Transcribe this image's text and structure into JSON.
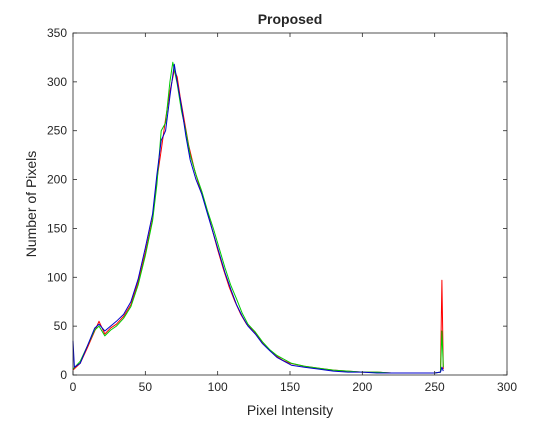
{
  "chart_data": {
    "type": "line",
    "title": "Proposed",
    "xlabel": "Pixel Intensity",
    "ylabel": "Number of Pixels",
    "xlim": [
      0,
      300
    ],
    "ylim": [
      0,
      350
    ],
    "xticks": [
      0,
      50,
      100,
      150,
      200,
      250,
      300
    ],
    "yticks": [
      0,
      50,
      100,
      150,
      200,
      250,
      300,
      350
    ],
    "grid": false,
    "legend": "none",
    "series": [
      {
        "color": "#ff0000",
        "points": [
          [
            0,
            5
          ],
          [
            5,
            12
          ],
          [
            10,
            28
          ],
          [
            15,
            45
          ],
          [
            18,
            55
          ],
          [
            22,
            42
          ],
          [
            26,
            48
          ],
          [
            30,
            52
          ],
          [
            35,
            60
          ],
          [
            40,
            72
          ],
          [
            45,
            95
          ],
          [
            50,
            125
          ],
          [
            55,
            160
          ],
          [
            58,
            200
          ],
          [
            61,
            230
          ],
          [
            64,
            262
          ],
          [
            67,
            290
          ],
          [
            70,
            312
          ],
          [
            72,
            305
          ],
          [
            74,
            285
          ],
          [
            77,
            260
          ],
          [
            80,
            235
          ],
          [
            84,
            210
          ],
          [
            88,
            190
          ],
          [
            92,
            172
          ],
          [
            96,
            150
          ],
          [
            100,
            128
          ],
          [
            104,
            108
          ],
          [
            108,
            90
          ],
          [
            112,
            75
          ],
          [
            116,
            62
          ],
          [
            120,
            52
          ],
          [
            125,
            45
          ],
          [
            130,
            35
          ],
          [
            135,
            27
          ],
          [
            140,
            20
          ],
          [
            145,
            15
          ],
          [
            150,
            12
          ],
          [
            160,
            9
          ],
          [
            170,
            7
          ],
          [
            180,
            5
          ],
          [
            190,
            4
          ],
          [
            200,
            3
          ],
          [
            210,
            3
          ],
          [
            220,
            2
          ],
          [
            230,
            2
          ],
          [
            240,
            2
          ],
          [
            250,
            2
          ],
          [
            254,
            3
          ],
          [
            255,
            97
          ],
          [
            256,
            6
          ]
        ]
      },
      {
        "color": "#00cc00",
        "points": [
          [
            0,
            6
          ],
          [
            5,
            14
          ],
          [
            10,
            30
          ],
          [
            15,
            46
          ],
          [
            18,
            50
          ],
          [
            22,
            40
          ],
          [
            26,
            46
          ],
          [
            30,
            50
          ],
          [
            35,
            58
          ],
          [
            40,
            70
          ],
          [
            45,
            92
          ],
          [
            50,
            122
          ],
          [
            55,
            158
          ],
          [
            58,
            195
          ],
          [
            61,
            250
          ],
          [
            64,
            258
          ],
          [
            67,
            300
          ],
          [
            69,
            320
          ],
          [
            72,
            298
          ],
          [
            75,
            270
          ],
          [
            78,
            250
          ],
          [
            81,
            225
          ],
          [
            85,
            205
          ],
          [
            89,
            188
          ],
          [
            93,
            168
          ],
          [
            97,
            150
          ],
          [
            101,
            130
          ],
          [
            105,
            110
          ],
          [
            109,
            92
          ],
          [
            113,
            78
          ],
          [
            117,
            63
          ],
          [
            121,
            52
          ],
          [
            126,
            44
          ],
          [
            131,
            34
          ],
          [
            136,
            26
          ],
          [
            141,
            20
          ],
          [
            146,
            16
          ],
          [
            151,
            12
          ],
          [
            160,
            9
          ],
          [
            170,
            7
          ],
          [
            180,
            5
          ],
          [
            190,
            4
          ],
          [
            200,
            3
          ],
          [
            210,
            3
          ],
          [
            220,
            2
          ],
          [
            230,
            2
          ],
          [
            240,
            2
          ],
          [
            250,
            2
          ],
          [
            254,
            3
          ],
          [
            255,
            45
          ],
          [
            256,
            8
          ]
        ]
      },
      {
        "color": "#0000cc",
        "points": [
          [
            0,
            35
          ],
          [
            1,
            8
          ],
          [
            5,
            12
          ],
          [
            10,
            30
          ],
          [
            15,
            48
          ],
          [
            18,
            52
          ],
          [
            22,
            45
          ],
          [
            26,
            50
          ],
          [
            30,
            55
          ],
          [
            35,
            62
          ],
          [
            40,
            75
          ],
          [
            45,
            98
          ],
          [
            50,
            130
          ],
          [
            55,
            165
          ],
          [
            58,
            205
          ],
          [
            61,
            240
          ],
          [
            64,
            250
          ],
          [
            67,
            285
          ],
          [
            70,
            318
          ],
          [
            72,
            300
          ],
          [
            75,
            275
          ],
          [
            78,
            245
          ],
          [
            81,
            220
          ],
          [
            85,
            200
          ],
          [
            89,
            185
          ],
          [
            93,
            165
          ],
          [
            97,
            145
          ],
          [
            101,
            125
          ],
          [
            105,
            105
          ],
          [
            109,
            88
          ],
          [
            113,
            72
          ],
          [
            117,
            60
          ],
          [
            121,
            50
          ],
          [
            126,
            42
          ],
          [
            131,
            32
          ],
          [
            136,
            25
          ],
          [
            141,
            18
          ],
          [
            146,
            14
          ],
          [
            151,
            10
          ],
          [
            160,
            8
          ],
          [
            170,
            6
          ],
          [
            180,
            4
          ],
          [
            190,
            3
          ],
          [
            200,
            3
          ],
          [
            210,
            2
          ],
          [
            220,
            2
          ],
          [
            230,
            2
          ],
          [
            240,
            2
          ],
          [
            250,
            2
          ],
          [
            254,
            3
          ],
          [
            255,
            8
          ],
          [
            256,
            4
          ]
        ]
      }
    ]
  }
}
